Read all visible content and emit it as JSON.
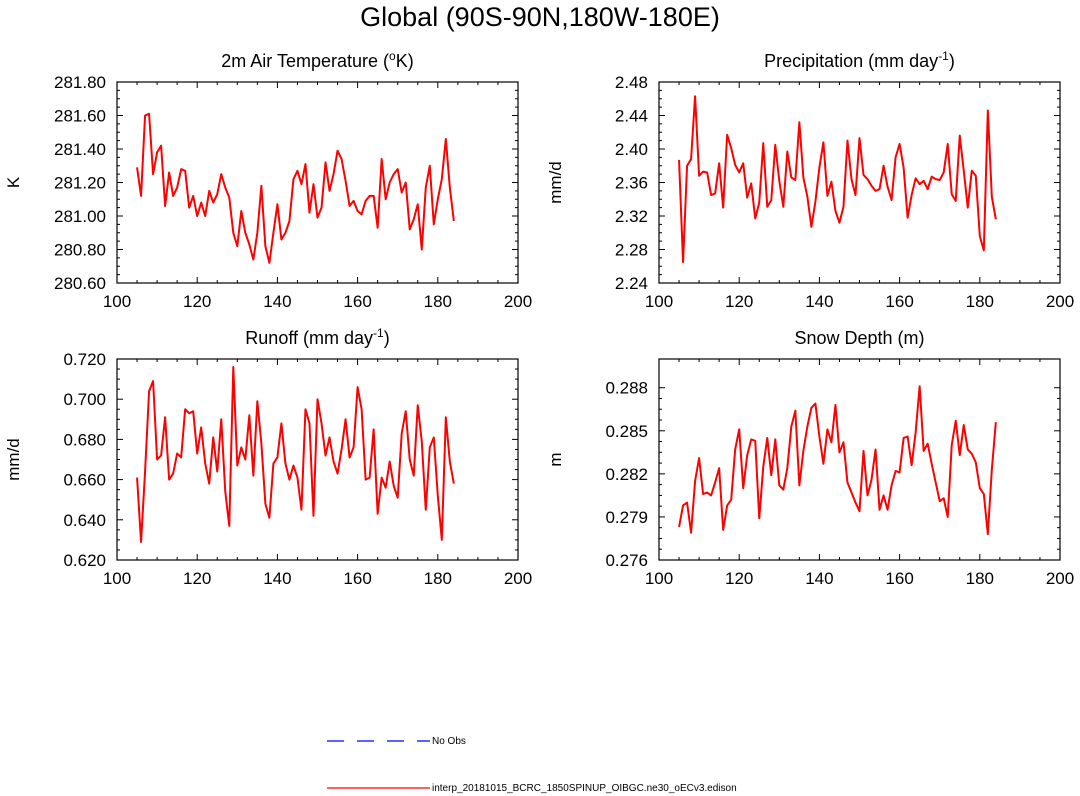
{
  "page": {
    "title": "Global (90S-90N,180W-180E)"
  },
  "legend": {
    "items": [
      {
        "label": "No Obs",
        "color": "#0000ff",
        "style": "dashed"
      },
      {
        "label": "interp_20181015_BCRC_1850SPINUP_OIBGC.ne30_oECv3.edison",
        "color": "#ff0000",
        "style": "solid"
      }
    ]
  },
  "chart_data": [
    {
      "type": "line",
      "title_main": "2m Air Temperature (",
      "title_sup1": "o",
      "title_mid": "K)",
      "title_sup2": "",
      "title_end": "",
      "xlabel": "",
      "ylabel": "K",
      "xlim": [
        100,
        200
      ],
      "ylim": [
        280.6,
        281.8
      ],
      "xticks": [
        100,
        120,
        140,
        160,
        180,
        200
      ],
      "yticks": [
        280.6,
        280.8,
        281.0,
        281.2,
        281.4,
        281.6,
        281.8
      ],
      "ytick_labels": [
        "280.60",
        "280.80",
        "281.00",
        "281.20",
        "281.40",
        "281.60",
        "281.80"
      ],
      "series": [
        {
          "color": "#ff0000",
          "x0": 105,
          "dx": 1,
          "values": [
            281.29,
            281.12,
            281.6,
            281.61,
            281.25,
            281.38,
            281.42,
            281.06,
            281.26,
            281.12,
            281.17,
            281.28,
            281.27,
            281.05,
            281.12,
            281.0,
            281.08,
            281.0,
            281.15,
            281.08,
            281.13,
            281.25,
            281.17,
            281.11,
            280.9,
            280.82,
            281.03,
            280.9,
            280.83,
            280.74,
            280.9,
            281.18,
            280.82,
            280.72,
            280.9,
            281.07,
            280.86,
            280.9,
            280.97,
            281.22,
            281.27,
            281.19,
            281.31,
            281.02,
            281.19,
            280.99,
            281.05,
            281.32,
            281.15,
            281.25,
            281.39,
            281.34,
            281.21,
            281.06,
            281.09,
            281.03,
            281.01,
            281.09,
            281.12,
            281.12,
            280.93,
            281.34,
            281.1,
            281.2,
            281.25,
            281.28,
            281.14,
            281.2,
            280.92,
            280.98,
            281.07,
            280.8,
            281.17,
            281.3,
            280.95,
            281.1,
            281.22,
            281.46,
            281.17,
            280.97
          ]
        }
      ]
    },
    {
      "type": "line",
      "title_main": "Precipitation (mm day",
      "title_sup1": "-1",
      "title_mid": ")",
      "title_sup2": "",
      "title_end": "",
      "xlabel": "",
      "ylabel": "mm/d",
      "xlim": [
        100,
        200
      ],
      "ylim": [
        2.24,
        2.48
      ],
      "xticks": [
        100,
        120,
        140,
        160,
        180,
        200
      ],
      "yticks": [
        2.24,
        2.28,
        2.32,
        2.36,
        2.4,
        2.44,
        2.48
      ],
      "ytick_labels": [
        "2.24",
        "2.28",
        "2.32",
        "2.36",
        "2.40",
        "2.44",
        "2.48"
      ],
      "series": [
        {
          "color": "#ff0000",
          "x0": 105,
          "dx": 1,
          "values": [
            2.387,
            2.265,
            2.38,
            2.388,
            2.463,
            2.368,
            2.373,
            2.372,
            2.345,
            2.347,
            2.383,
            2.33,
            2.417,
            2.401,
            2.381,
            2.372,
            2.383,
            2.342,
            2.359,
            2.317,
            2.336,
            2.407,
            2.331,
            2.339,
            2.405,
            2.362,
            2.331,
            2.397,
            2.366,
            2.363,
            2.432,
            2.366,
            2.343,
            2.307,
            2.337,
            2.378,
            2.408,
            2.344,
            2.361,
            2.326,
            2.312,
            2.331,
            2.41,
            2.364,
            2.345,
            2.413,
            2.369,
            2.364,
            2.356,
            2.35,
            2.352,
            2.38,
            2.355,
            2.339,
            2.39,
            2.406,
            2.378,
            2.318,
            2.345,
            2.365,
            2.358,
            2.362,
            2.352,
            2.367,
            2.364,
            2.363,
            2.372,
            2.406,
            2.346,
            2.338,
            2.416,
            2.374,
            2.33,
            2.374,
            2.368,
            2.296,
            2.279,
            2.446,
            2.343,
            2.316
          ]
        }
      ]
    },
    {
      "type": "line",
      "title_main": "Runoff (mm day",
      "title_sup1": "-1",
      "title_mid": ")",
      "title_sup2": "",
      "title_end": "",
      "xlabel": "",
      "ylabel": "mm/d",
      "xlim": [
        100,
        200
      ],
      "ylim": [
        0.62,
        0.72
      ],
      "xticks": [
        100,
        120,
        140,
        160,
        180,
        200
      ],
      "yticks": [
        0.62,
        0.64,
        0.66,
        0.68,
        0.7,
        0.72
      ],
      "ytick_labels": [
        "0.620",
        "0.640",
        "0.660",
        "0.680",
        "0.700",
        "0.720"
      ],
      "series": [
        {
          "color": "#ff0000",
          "x0": 105,
          "dx": 1,
          "values": [
            0.661,
            0.629,
            0.664,
            0.704,
            0.709,
            0.67,
            0.672,
            0.691,
            0.66,
            0.663,
            0.673,
            0.671,
            0.695,
            0.693,
            0.694,
            0.673,
            0.686,
            0.668,
            0.658,
            0.681,
            0.664,
            0.69,
            0.654,
            0.637,
            0.716,
            0.667,
            0.676,
            0.67,
            0.692,
            0.662,
            0.699,
            0.678,
            0.648,
            0.641,
            0.668,
            0.671,
            0.688,
            0.668,
            0.66,
            0.667,
            0.661,
            0.645,
            0.695,
            0.688,
            0.642,
            0.7,
            0.688,
            0.672,
            0.681,
            0.669,
            0.663,
            0.675,
            0.69,
            0.671,
            0.676,
            0.706,
            0.695,
            0.66,
            0.661,
            0.685,
            0.643,
            0.661,
            0.656,
            0.669,
            0.657,
            0.651,
            0.683,
            0.694,
            0.67,
            0.662,
            0.697,
            0.679,
            0.645,
            0.676,
            0.681,
            0.652,
            0.63,
            0.691,
            0.669,
            0.658
          ]
        }
      ]
    },
    {
      "type": "line",
      "title_main": "Snow Depth (m)",
      "title_sup1": "",
      "title_mid": "",
      "title_sup2": "",
      "title_end": "",
      "xlabel": "",
      "ylabel": "m",
      "xlim": [
        100,
        200
      ],
      "ylim": [
        0.276,
        0.29
      ],
      "xticks": [
        100,
        120,
        140,
        160,
        180,
        200
      ],
      "yticks": [
        0.276,
        0.279,
        0.282,
        0.285,
        0.288
      ],
      "ytick_labels": [
        "0.276",
        "0.279",
        "0.282",
        "0.285",
        "0.288"
      ],
      "series": [
        {
          "color": "#ff0000",
          "x0": 105,
          "dx": 1,
          "values": [
            0.2783,
            0.2798,
            0.28,
            0.2779,
            0.2815,
            0.2831,
            0.2806,
            0.2807,
            0.2805,
            0.2814,
            0.2824,
            0.2781,
            0.2798,
            0.2802,
            0.2837,
            0.2851,
            0.281,
            0.2833,
            0.2844,
            0.2843,
            0.2789,
            0.2825,
            0.2845,
            0.2819,
            0.2844,
            0.2812,
            0.2809,
            0.2824,
            0.2853,
            0.2864,
            0.2812,
            0.2836,
            0.2853,
            0.2866,
            0.2869,
            0.2846,
            0.2827,
            0.2851,
            0.2842,
            0.2868,
            0.2835,
            0.2842,
            0.2814,
            0.2807,
            0.28,
            0.2794,
            0.2836,
            0.2805,
            0.2816,
            0.2837,
            0.2795,
            0.2805,
            0.2795,
            0.2812,
            0.2822,
            0.2821,
            0.2845,
            0.2846,
            0.2826,
            0.2849,
            0.2881,
            0.2836,
            0.2841,
            0.2827,
            0.2814,
            0.2801,
            0.2803,
            0.279,
            0.284,
            0.2857,
            0.2833,
            0.2854,
            0.2837,
            0.2834,
            0.2828,
            0.281,
            0.2806,
            0.2778,
            0.2823,
            0.2856
          ]
        }
      ]
    }
  ]
}
